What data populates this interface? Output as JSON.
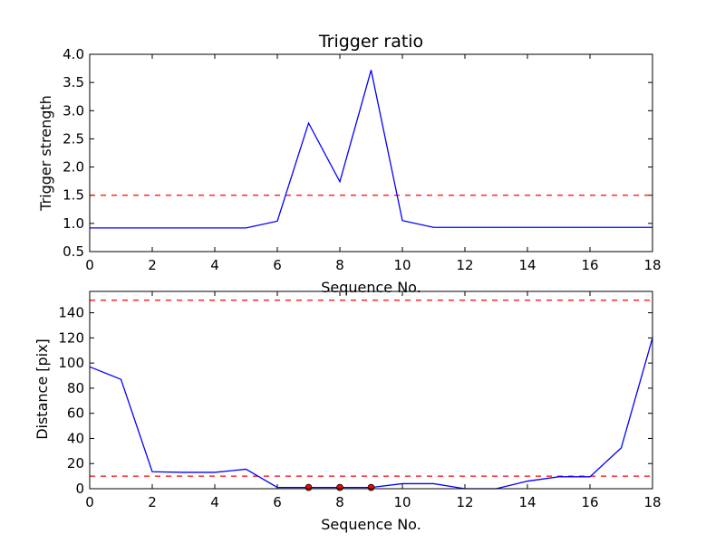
{
  "chart_data": [
    {
      "type": "line",
      "title": "Trigger ratio",
      "xlabel": "Sequence No.",
      "ylabel": "Trigger strength",
      "xlim": [
        0,
        18
      ],
      "ylim": [
        0.5,
        4.0
      ],
      "xticks": [
        0,
        2,
        4,
        6,
        8,
        10,
        12,
        14,
        16,
        18
      ],
      "yticks": [
        0.5,
        1.0,
        1.5,
        2.0,
        2.5,
        3.0,
        3.5,
        4.0
      ],
      "ytick_labels": [
        "0.5",
        "1.0",
        "1.5",
        "2.0",
        "2.5",
        "3.0",
        "3.5",
        "4.0"
      ],
      "series": [
        {
          "color": "#0000ff",
          "x": [
            0,
            1,
            2,
            3,
            4,
            5,
            6,
            7,
            8,
            9,
            10,
            11,
            12,
            13,
            14,
            15,
            16,
            17,
            18
          ],
          "y": [
            0.92,
            0.92,
            0.92,
            0.92,
            0.92,
            0.92,
            1.04,
            2.78,
            1.74,
            3.72,
            1.05,
            0.93,
            0.93,
            0.93,
            0.93,
            0.93,
            0.93,
            0.93,
            0.93
          ]
        }
      ],
      "hlines": [
        {
          "y": 1.5,
          "color": "#ff0000",
          "style": "dashed"
        }
      ],
      "markers": []
    },
    {
      "type": "line",
      "title": "",
      "xlabel": "Sequence No.",
      "ylabel": "Distance [pix]",
      "xlim": [
        0,
        18
      ],
      "ylim": [
        0,
        157
      ],
      "xticks": [
        0,
        2,
        4,
        6,
        8,
        10,
        12,
        14,
        16,
        18
      ],
      "yticks": [
        0,
        20,
        40,
        60,
        80,
        100,
        120,
        140
      ],
      "ytick_labels": [
        "0",
        "20",
        "40",
        "60",
        "80",
        "100",
        "120",
        "140"
      ],
      "series": [
        {
          "color": "#0000ff",
          "x": [
            0,
            1,
            2,
            3,
            4,
            5,
            6,
            7,
            8,
            9,
            10,
            11,
            12,
            13,
            14,
            15,
            16,
            17,
            18
          ],
          "y": [
            97,
            87,
            13.5,
            13,
            13,
            15.5,
            1,
            1,
            1,
            1,
            4,
            4,
            0,
            0,
            6,
            9.5,
            9.5,
            32.5,
            120
          ]
        }
      ],
      "hlines": [
        {
          "y": 150,
          "color": "#ff0000",
          "style": "dashed"
        },
        {
          "y": 10,
          "color": "#ff0000",
          "style": "dashed"
        }
      ],
      "markers": [
        {
          "x": 7,
          "y": 1,
          "color": "#ff0000"
        },
        {
          "x": 8,
          "y": 1,
          "color": "#ff0000"
        },
        {
          "x": 9,
          "y": 1,
          "color": "#ff0000"
        }
      ]
    }
  ]
}
